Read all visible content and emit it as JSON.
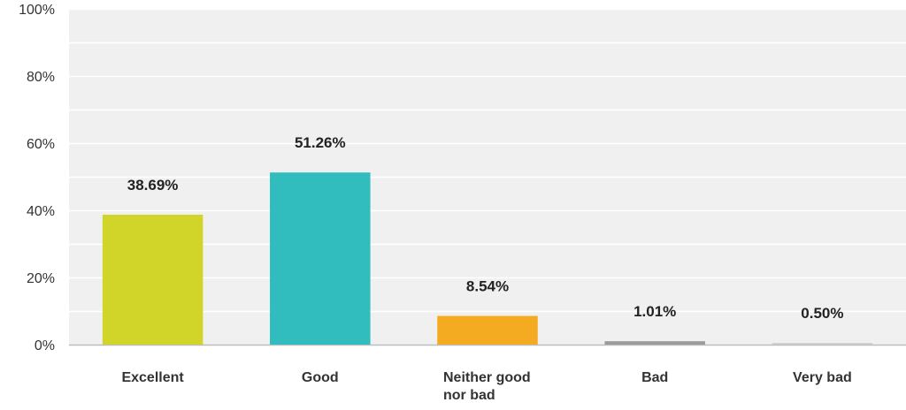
{
  "chart_data": {
    "type": "bar",
    "categories": [
      "Excellent",
      "Good",
      "Neither good nor bad",
      "Bad",
      "Very bad"
    ],
    "category_lines": [
      [
        "Excellent"
      ],
      [
        "Good"
      ],
      [
        "Neither good",
        "nor bad"
      ],
      [
        "Bad"
      ],
      [
        "Very bad"
      ]
    ],
    "values": [
      38.69,
      51.26,
      8.54,
      1.01,
      0.5
    ],
    "data_labels": [
      "38.69%",
      "51.26%",
      "8.54%",
      "1.01%",
      "0.50%"
    ],
    "colors": [
      "#d1d52a",
      "#31bdbd",
      "#f5ab21",
      "#9b9b9b",
      "#cfcfcf"
    ],
    "ylim": [
      0,
      100
    ],
    "yticks": [
      0,
      20,
      40,
      60,
      80,
      100
    ],
    "ytick_labels": [
      "0%",
      "20%",
      "40%",
      "60%",
      "80%",
      "100%"
    ],
    "grid": true,
    "plot_background": "#f0f0f0",
    "title": "",
    "xlabel": "",
    "ylabel": ""
  }
}
